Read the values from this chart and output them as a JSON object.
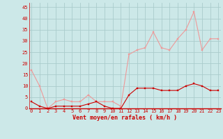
{
  "hours": [
    0,
    1,
    2,
    3,
    4,
    5,
    6,
    7,
    8,
    9,
    10,
    11,
    12,
    13,
    14,
    15,
    16,
    17,
    18,
    19,
    20,
    21,
    22,
    23
  ],
  "wind_avg": [
    3,
    1,
    0,
    1,
    1,
    1,
    1,
    2,
    3,
    1,
    0,
    0,
    6,
    9,
    9,
    9,
    8,
    8,
    8,
    10,
    11,
    10,
    8,
    8
  ],
  "wind_gust": [
    17,
    10,
    0,
    3,
    4,
    3,
    3,
    6,
    3,
    3,
    3,
    1,
    24,
    26,
    27,
    34,
    27,
    26,
    31,
    35,
    43,
    26,
    31,
    31
  ],
  "bg_color": "#cce8e8",
  "grid_color": "#aacccc",
  "avg_color": "#cc0000",
  "gust_color": "#ee9999",
  "xlabel": "Vent moyen/en rafales ( km/h )",
  "yticks": [
    0,
    5,
    10,
    15,
    20,
    25,
    30,
    35,
    40,
    45
  ],
  "ylim": [
    0,
    47
  ],
  "xlim": [
    -0.3,
    23.3
  ],
  "marker_size": 2.0
}
